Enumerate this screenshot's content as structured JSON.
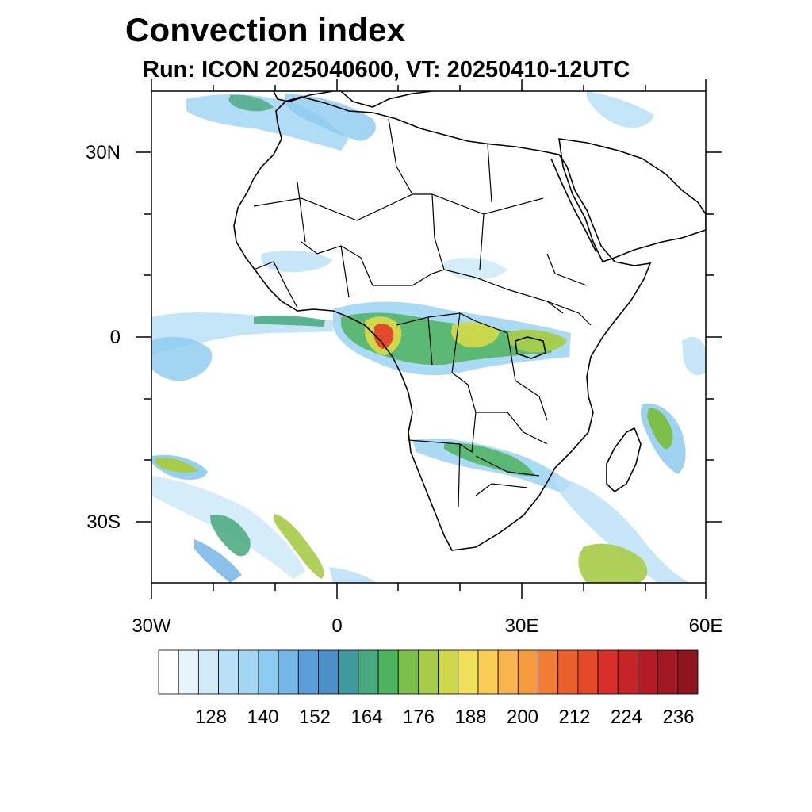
{
  "title": "Convection index",
  "subtitle": "Run: ICON 2025040600,  VT: 20250410-12UTC",
  "map": {
    "region": "Africa",
    "lon_range": [
      -30,
      60
    ],
    "lat_range": [
      -40,
      40
    ],
    "lon_ticks": [
      {
        "lon": -30,
        "label": "30W"
      },
      {
        "lon": 0,
        "label": "0"
      },
      {
        "lon": 30,
        "label": "30E"
      },
      {
        "lon": 60,
        "label": "60E"
      }
    ],
    "lat_ticks": [
      {
        "lat": 30,
        "label": "30N"
      },
      {
        "lat": 0,
        "label": "0"
      },
      {
        "lat": -30,
        "label": "30S"
      }
    ]
  },
  "colorbar": {
    "labels": [
      "128",
      "140",
      "152",
      "164",
      "176",
      "188",
      "200",
      "212",
      "224",
      "236"
    ],
    "colors": [
      "#ffffff",
      "#e8f4fb",
      "#d0eaf8",
      "#b9e0f6",
      "#a2d6f3",
      "#8ccaef",
      "#74b6e6",
      "#5b9fd8",
      "#4a8fc8",
      "#3f9aa0",
      "#48a87e",
      "#4eb35e",
      "#7dbf4a",
      "#a6cc48",
      "#cfd84a",
      "#f0e05a",
      "#f8cc55",
      "#f8b34c",
      "#f69a40",
      "#f07e34",
      "#ea602c",
      "#e24a2a",
      "#d92e2a",
      "#c72428",
      "#b51c26",
      "#a21822",
      "#8e141e"
    ]
  },
  "colors": {
    "frame": "#000000",
    "coast": "#000000"
  }
}
